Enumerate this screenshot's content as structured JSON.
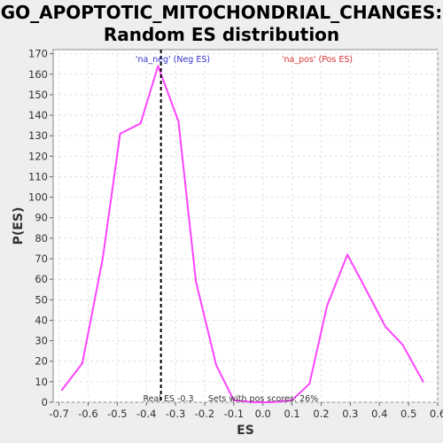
{
  "chart_data": {
    "type": "line",
    "title_line1": "GO_APOPTOTIC_MITOCHONDRIAL_CHANGES:",
    "title_line2": "Random ES distribution",
    "xlabel": "ES",
    "ylabel": "P(ES)",
    "xlim": [
      -0.72,
      0.6
    ],
    "ylim": [
      0,
      172
    ],
    "x_ticks": [
      -0.7,
      -0.6,
      -0.5,
      -0.4,
      -0.3,
      -0.2,
      -0.1,
      0.0,
      0.1,
      0.2,
      0.3,
      0.4,
      0.5,
      0.6
    ],
    "x_tick_labels": [
      "-0.7",
      "-0.6",
      "-0.5",
      "-0.4",
      "-0.3",
      "-0.2",
      "-0.1",
      "0.0",
      "0.1",
      "0.2",
      "0.3",
      "0.4",
      "0.5",
      "0.6"
    ],
    "y_ticks": [
      0,
      10,
      20,
      30,
      40,
      50,
      60,
      70,
      80,
      90,
      100,
      110,
      120,
      130,
      140,
      150,
      160,
      170
    ],
    "grid": true,
    "series": [
      {
        "color": "#ff44ff",
        "x": [
          -0.69,
          -0.62,
          -0.55,
          -0.49,
          -0.42,
          -0.36,
          -0.29,
          -0.23,
          -0.16,
          -0.1,
          -0.03,
          0.03,
          0.1,
          0.16,
          0.22,
          0.29,
          0.35,
          0.42,
          0.48,
          0.55
        ],
        "y": [
          6,
          19,
          70,
          131,
          136,
          164,
          137,
          59,
          18,
          1,
          0,
          0,
          1,
          9,
          47,
          72,
          56,
          37,
          28,
          10
        ]
      }
    ],
    "real_es": -0.35,
    "annotations": {
      "neg_label": "'na_neg' (Neg ES)",
      "neg_color": "#3333cc",
      "pos_label": "'na_pos' (Pos ES)",
      "pos_color": "#dd3333",
      "real_es_label": "Real ES -0.3",
      "pos_scores_label": "Sets with pos scores: 26%"
    }
  }
}
